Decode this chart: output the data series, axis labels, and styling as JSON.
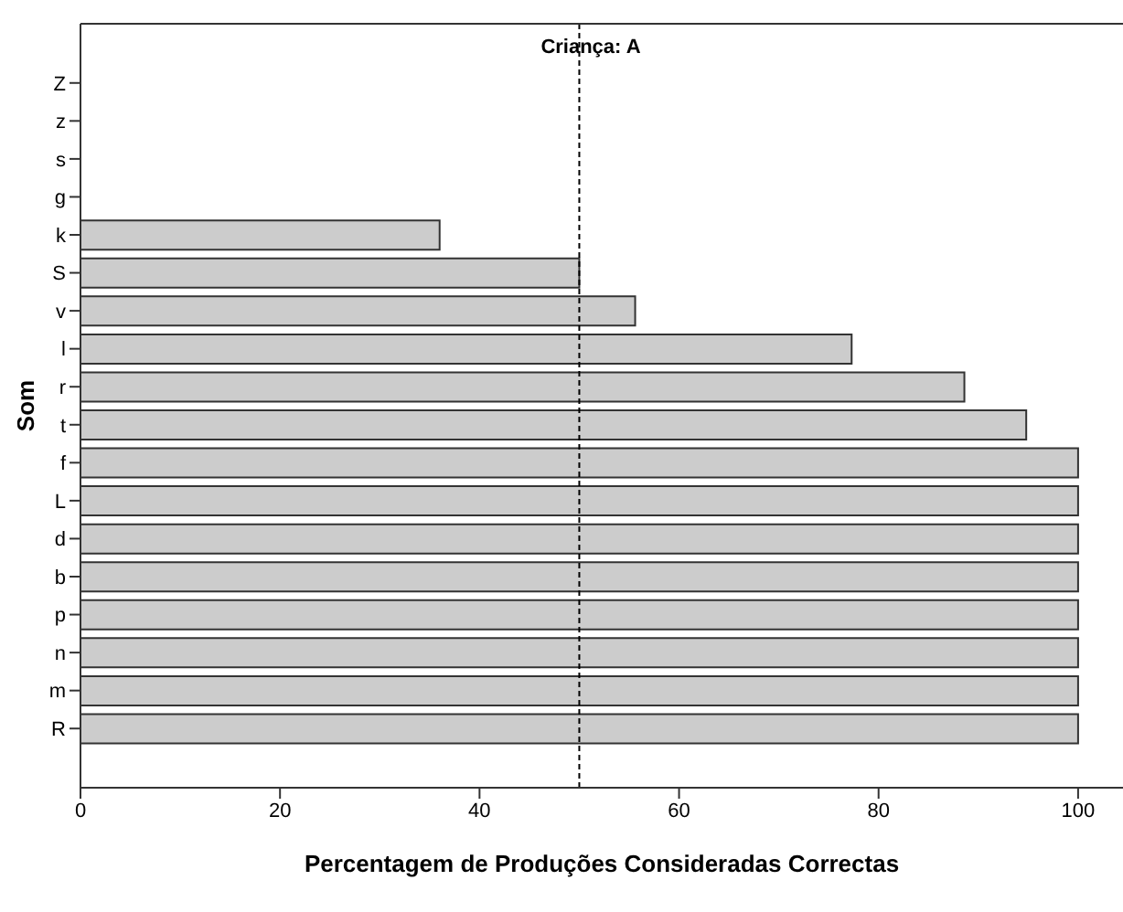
{
  "chart_data": {
    "type": "bar",
    "orientation": "horizontal",
    "title": "Criança: A",
    "xlabel": "Percentagem de Produções Consideradas Correctas",
    "ylabel": "Som",
    "categories": [
      "Z",
      "z",
      "s",
      "g",
      "k",
      "S",
      "v",
      "l",
      "r",
      "t",
      "f",
      "L",
      "d",
      "b",
      "p",
      "n",
      "m",
      "R"
    ],
    "values": [
      0,
      0,
      0,
      0,
      36,
      50,
      55.6,
      77.3,
      88.6,
      94.8,
      100,
      100,
      100,
      100,
      100,
      100,
      100,
      100
    ],
    "color": "#cccccc",
    "xlim": [
      0,
      104.5
    ],
    "xticks": [
      0,
      20,
      40,
      60,
      80,
      100
    ],
    "ref_lines": [
      {
        "axis": "x",
        "value": 50,
        "line_style": "dashed",
        "color": "#000000"
      }
    ],
    "data_labels": false
  }
}
